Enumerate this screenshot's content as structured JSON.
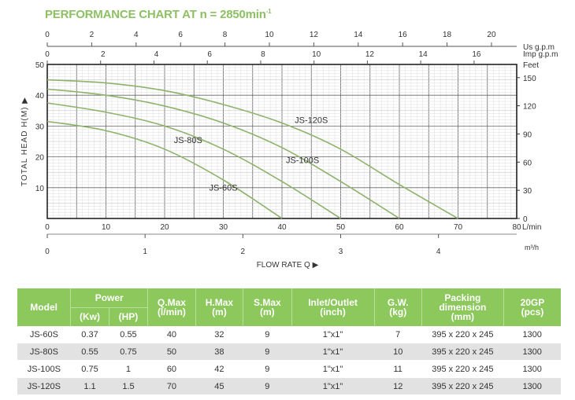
{
  "title": {
    "text": "PERFORMANCE CHART AT n = 2850min",
    "sup": "-1"
  },
  "chart_data": {
    "type": "line",
    "title": "PERFORMANCE CHART AT n = 2850min-1",
    "xlabel": "FLOW RATE Q",
    "ylabel": "TOTAL HEAD H(M)",
    "x_unit": "L/min",
    "xlim": [
      0,
      80
    ],
    "ylim": [
      0,
      50
    ],
    "x_ticks": [
      0,
      10,
      20,
      30,
      40,
      50,
      60,
      70,
      80
    ],
    "y_ticks": [
      10,
      20,
      30,
      40,
      50
    ],
    "grid": true,
    "secondary_axes": {
      "us_gpm": {
        "label": "Us g.p.m",
        "ticks": [
          0,
          2,
          4,
          6,
          8,
          10,
          12,
          14,
          16,
          18,
          20
        ]
      },
      "imp_gpm": {
        "label": "Imp g.p.m",
        "ticks": [
          0,
          2,
          4,
          6,
          8,
          10,
          12,
          14,
          16
        ]
      },
      "feet": {
        "label": "Feet",
        "ticks": [
          0,
          30,
          60,
          90,
          120,
          150
        ]
      },
      "m3h": {
        "label": "m³/h",
        "ticks": [
          0,
          1,
          2,
          3,
          4
        ]
      }
    },
    "line_color": "#8db36a",
    "series": [
      {
        "name": "JS-120S",
        "x": [
          0,
          10,
          20,
          30,
          40,
          50,
          60,
          70
        ],
        "y": [
          45,
          44,
          41.5,
          37,
          31,
          22.5,
          11,
          0
        ]
      },
      {
        "name": "JS-100S",
        "x": [
          0,
          10,
          20,
          30,
          40,
          50,
          60
        ],
        "y": [
          42,
          40,
          36.5,
          31,
          23,
          12,
          0
        ]
      },
      {
        "name": "JS-80S",
        "x": [
          0,
          10,
          20,
          30,
          40,
          50
        ],
        "y": [
          37.5,
          34.5,
          30,
          22.5,
          12,
          0
        ]
      },
      {
        "name": "JS-60S",
        "x": [
          0,
          10,
          20,
          30,
          40
        ],
        "y": [
          31.5,
          28.5,
          22.5,
          12.5,
          0
        ]
      }
    ]
  },
  "table": {
    "headers": {
      "model": "Model",
      "power": "Power",
      "kw": "(Kw)",
      "hp": "(HP)",
      "qmax": [
        "Q.Max",
        "(l/min)"
      ],
      "hmax": [
        "H.Max",
        "(m)"
      ],
      "smax": [
        "S.Max",
        "(m)"
      ],
      "inlet": [
        "Inlet/Outlet",
        "(inch)"
      ],
      "gw": [
        "G.W.",
        "(kg)"
      ],
      "packing": [
        "Packing",
        "dimension",
        "(mm)"
      ],
      "gp": [
        "20GP",
        "(pcs)"
      ]
    },
    "rows": [
      [
        "JS-60S",
        "0.37",
        "0.55",
        "40",
        "32",
        "9",
        "1\"x1\"",
        "7",
        "395 x 220 x 245",
        "1300"
      ],
      [
        "JS-80S",
        "0.55",
        "0.75",
        "50",
        "38",
        "9",
        "1\"x1\"",
        "10",
        "395 x 220 x 245",
        "1300"
      ],
      [
        "JS-100S",
        "0.75",
        "1",
        "60",
        "42",
        "9",
        "1\"x1\"",
        "11",
        "395 x 220 x 245",
        "1300"
      ],
      [
        "JS-120S",
        "1.1",
        "1.5",
        "70",
        "45",
        "9",
        "1\"x1\"",
        "12",
        "395 x 220 x 245",
        "1300"
      ]
    ]
  }
}
